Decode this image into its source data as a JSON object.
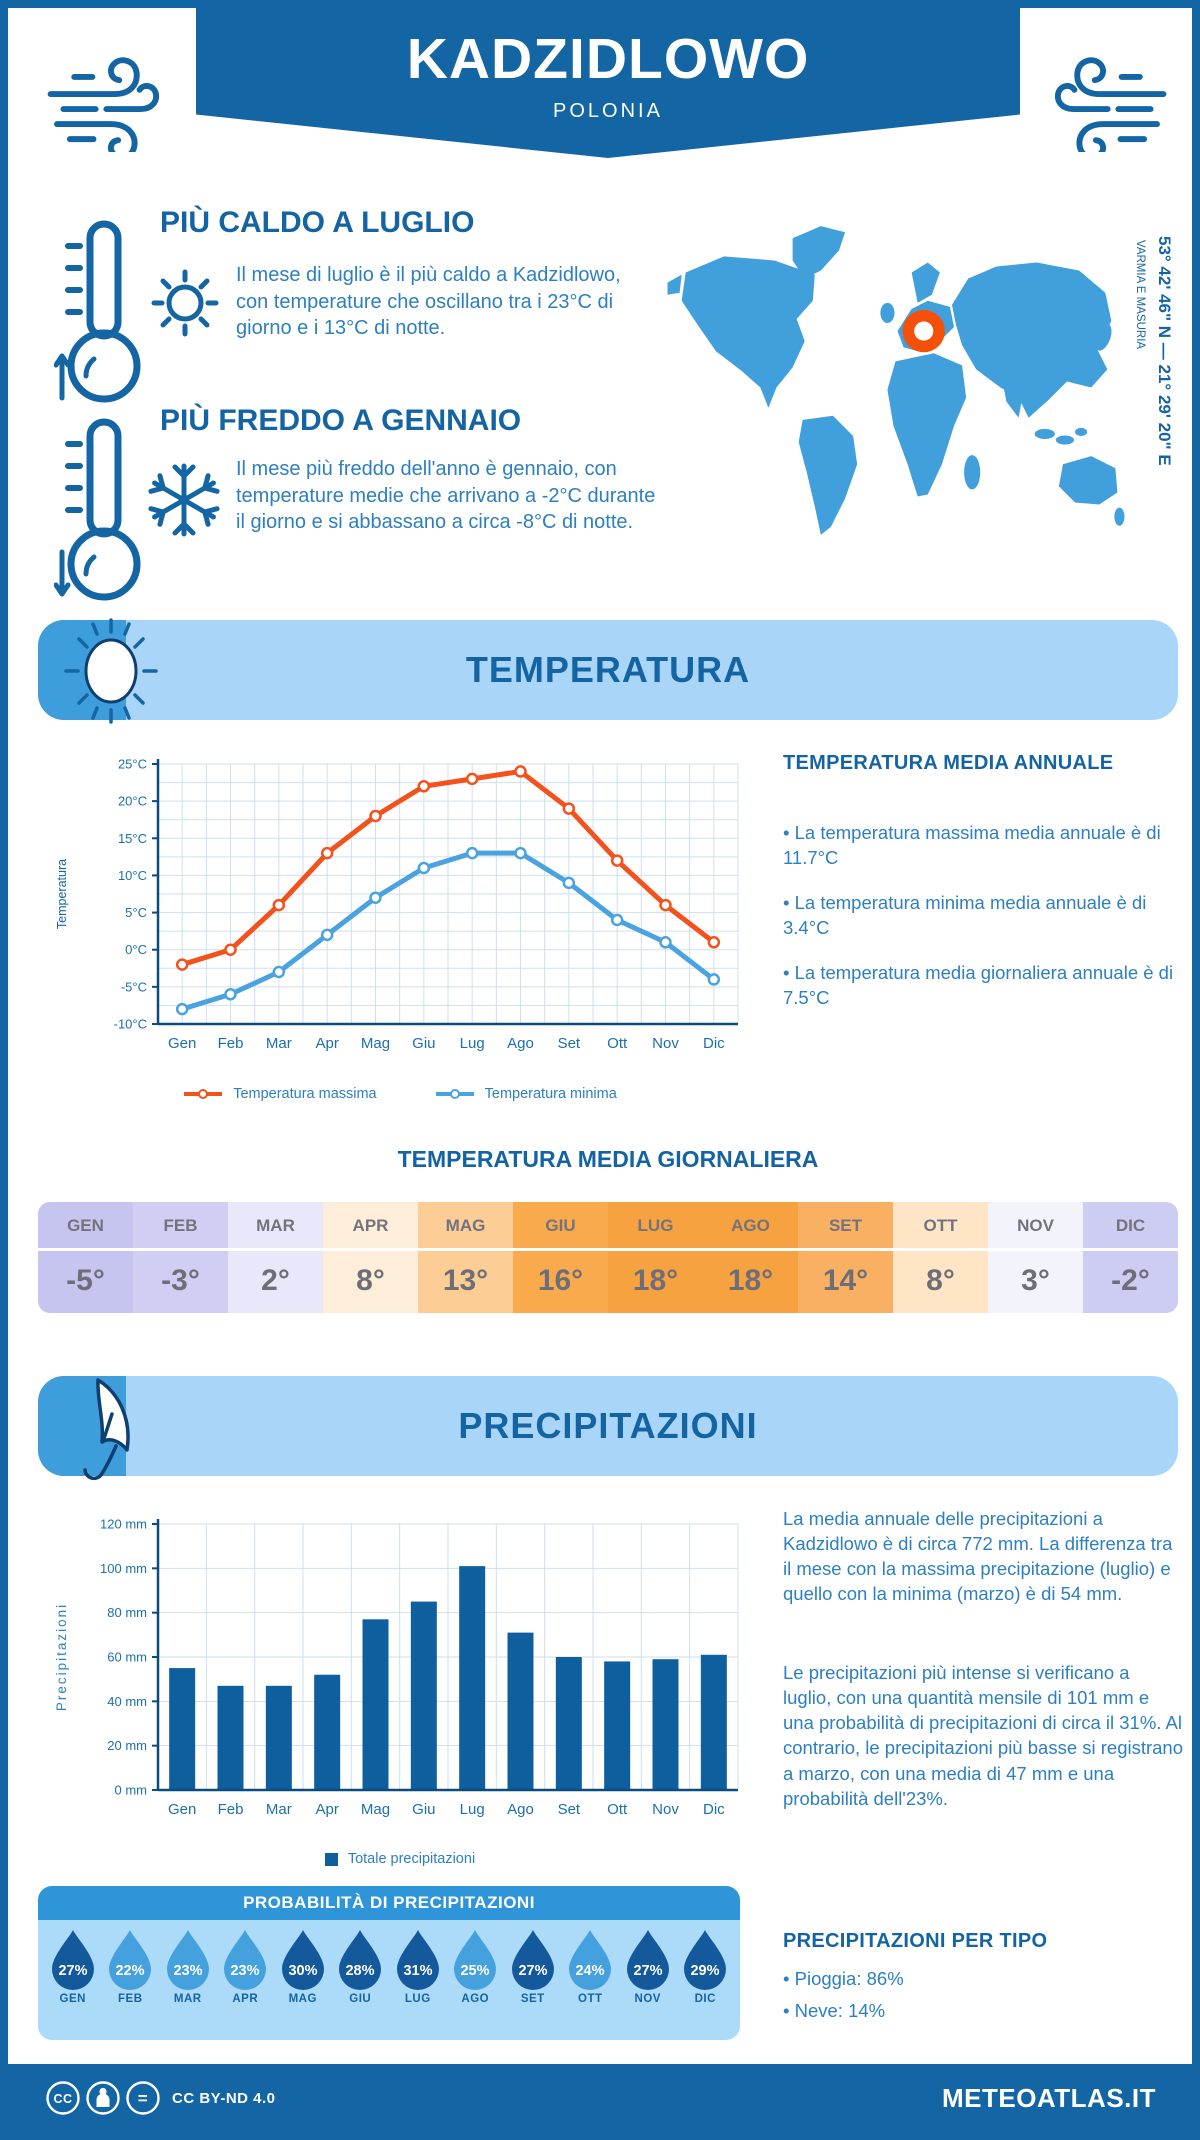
{
  "page": {
    "location": "KADZIDLOWO",
    "country": "POLONIA",
    "coordinates": "53° 42' 46\" N — 21° 29' 20\" E",
    "region": "VARMIA E MASURIA",
    "footer_license": "CC BY-ND 4.0",
    "footer_site": "METEOATLAS.IT"
  },
  "colors": {
    "primary_blue": "#1465a3",
    "body_blue": "#2d7fc1",
    "banner_light": "#a9d6f8",
    "banner_tab": "#3e9edb",
    "map_blue": "#41a0dc",
    "marker_orange": "#f4500a",
    "max_line_red": "#f4521d",
    "min_line_blue": "#4aa3e0",
    "bar_blue": "#0f5f9e",
    "drop_dark": "#14599c",
    "drop_light": "#44a1de"
  },
  "icons": {
    "wind": "wind-icon",
    "thermometer_up": "thermometer-up-icon",
    "sun": "sun-icon",
    "thermometer_down": "thermometer-down-icon",
    "snowflake": "snowflake-icon",
    "sun_banner": "sun-banner-icon",
    "umbrella": "umbrella-icon",
    "raindrop": "raindrop-icon",
    "world_map": "world-map",
    "cc": "cc-license-icons"
  },
  "highlights": {
    "warm": {
      "title": "PIÙ CALDO A LUGLIO",
      "text": "Il mese di luglio è il più caldo a Kadzidlowo, con temperature che oscillano tra i 23°C di giorno e i 13°C di notte."
    },
    "cold": {
      "title": "PIÙ FREDDO A GENNAIO",
      "text": "Il mese più freddo dell'anno è gennaio, con temperature medie che arrivano a -2°C durante il giorno e si abbassano a circa -8°C di notte."
    }
  },
  "temperature_section": {
    "title": "TEMPERATURA",
    "annual": {
      "title": "TEMPERATURA MEDIA ANNUALE",
      "bullets": [
        "• La temperatura massima media annuale è di 11.7°C",
        "• La temperatura minima media annuale è di 3.4°C",
        "• La temperatura media giornaliera annuale è di 7.5°C"
      ]
    },
    "daily_title": "TEMPERATURA MEDIA GIORNALIERA",
    "monthly_table": {
      "months": [
        "GEN",
        "FEB",
        "MAR",
        "APR",
        "MAG",
        "GIU",
        "LUG",
        "AGO",
        "SET",
        "OTT",
        "NOV",
        "DIC"
      ],
      "values": [
        "-5°",
        "-3°",
        "2°",
        "8°",
        "13°",
        "16°",
        "18°",
        "18°",
        "14°",
        "8°",
        "3°",
        "-2°"
      ],
      "colors": [
        "#c6c5f0",
        "#d0cff3",
        "#e9e8fa",
        "#fdeeda",
        "#fccd95",
        "#f9aa4d",
        "#f7a240",
        "#f7a240",
        "#f9b063",
        "#fde5c6",
        "#f3f3fc",
        "#cdccf2"
      ]
    }
  },
  "precipitation_section": {
    "title": "PRECIPITAZIONI",
    "paragraphs": [
      "La media annuale delle precipitazioni a Kadzidlowo è di circa 772 mm. La differenza tra il mese con la massima precipitazione (luglio) e quello con la minima (marzo) è di 54 mm.",
      "Le precipitazioni più intense si verificano a luglio, con una quantità mensile di 101 mm e una probabilità di precipitazioni di circa il 31%. Al contrario, le precipitazioni più basse si registrano a marzo, con una media di 47 mm e una probabilità dell'23%."
    ],
    "probability": {
      "title": "PROBABILITÀ DI PRECIPITAZIONI",
      "months": [
        "GEN",
        "FEB",
        "MAR",
        "APR",
        "MAG",
        "GIU",
        "LUG",
        "AGO",
        "SET",
        "OTT",
        "NOV",
        "DIC"
      ],
      "values": [
        "27%",
        "22%",
        "23%",
        "23%",
        "30%",
        "28%",
        "31%",
        "25%",
        "27%",
        "24%",
        "27%",
        "29%"
      ],
      "dark": [
        true,
        false,
        false,
        false,
        true,
        true,
        true,
        false,
        true,
        false,
        true,
        true
      ]
    },
    "by_type": {
      "title": "PRECIPITAZIONI PER TIPO",
      "bullets": [
        "• Pioggia: 86%",
        "• Neve: 14%"
      ]
    }
  },
  "chart_data": [
    {
      "type": "line",
      "title": "Temperatura massima e minima mensile",
      "categories": [
        "Gen",
        "Feb",
        "Mar",
        "Apr",
        "Mag",
        "Giu",
        "Lug",
        "Ago",
        "Set",
        "Ott",
        "Nov",
        "Dic"
      ],
      "series": [
        {
          "name": "Temperatura massima",
          "color": "#f4521d",
          "values": [
            -2,
            0,
            6,
            13,
            18,
            22,
            23,
            24,
            19,
            12,
            6,
            1
          ]
        },
        {
          "name": "Temperatura minima",
          "color": "#4aa3e0",
          "values": [
            -8,
            -6,
            -3,
            2,
            7,
            11,
            13,
            13,
            9,
            4,
            1,
            -4
          ]
        }
      ],
      "ylabel": "Temperatura",
      "ylim": [
        -10,
        25
      ],
      "ytick_step": 5,
      "ytick_suffix": "°C",
      "grid": true,
      "legend_position": "bottom"
    },
    {
      "type": "bar",
      "title": "Precipitazioni mensili",
      "categories": [
        "Gen",
        "Feb",
        "Mar",
        "Apr",
        "Mag",
        "Giu",
        "Lug",
        "Ago",
        "Set",
        "Ott",
        "Nov",
        "Dic"
      ],
      "values": [
        55,
        47,
        47,
        52,
        77,
        85,
        101,
        71,
        60,
        58,
        59,
        61
      ],
      "legend": "Totale precipitazioni",
      "ylabel": "Precipitazioni",
      "ylim": [
        0,
        120
      ],
      "ytick_step": 20,
      "ytick_suffix": " mm",
      "bar_color": "#0f5f9e",
      "grid": true,
      "legend_position": "bottom"
    }
  ]
}
